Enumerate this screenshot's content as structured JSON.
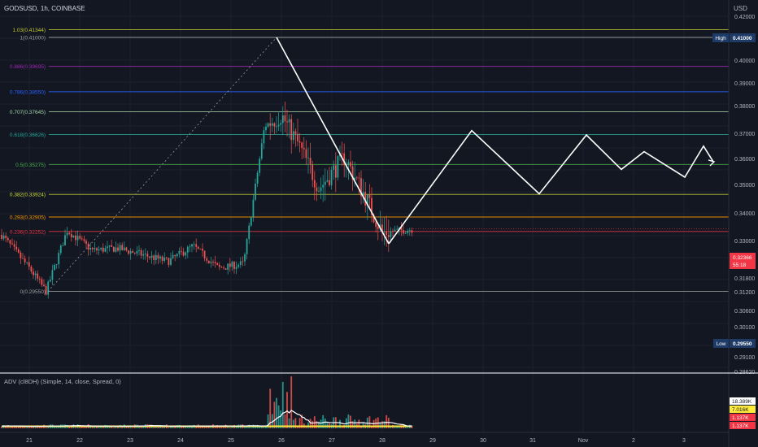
{
  "header": {
    "symbol": "GODSUSD, 1h, COINBASE",
    "currency": "USD"
  },
  "price_axis": {
    "labels": [
      "0.42000",
      "0.41000",
      "0.40000",
      "0.39000",
      "0.38000",
      "0.37000",
      "0.36000",
      "0.35000",
      "0.34000",
      "0.33000",
      "0.31800",
      "0.31200",
      "0.30600",
      "0.30100",
      "0.29550",
      "0.29100",
      "0.28620"
    ]
  },
  "fib": {
    "levels": [
      {
        "label": "1.03(0.41344)",
        "price": 0.41344,
        "color": "#c0ca33"
      },
      {
        "label": "1(0.41000)",
        "price": 0.41,
        "color": "#9e9e9e"
      },
      {
        "label": "0.886(0.39695)",
        "price": 0.39695,
        "color": "#9c27b0"
      },
      {
        "label": "0.786(0.38550)",
        "price": 0.3855,
        "color": "#2962ff"
      },
      {
        "label": "0.707(0.37645)",
        "price": 0.37645,
        "color": "#a5d6a7"
      },
      {
        "label": "0.618(0.36626)",
        "price": 0.36626,
        "color": "#26a69a"
      },
      {
        "label": "0.5(0.35275)",
        "price": 0.35275,
        "color": "#4caf50"
      },
      {
        "label": "0.382(0.33924)",
        "price": 0.33924,
        "color": "#cddc39"
      },
      {
        "label": "0.293(0.32905)",
        "price": 0.32905,
        "color": "#ff9800"
      },
      {
        "label": "0.236(0.32252)",
        "price": 0.32252,
        "color": "#f23645"
      },
      {
        "label": "0(0.29550)",
        "price": 0.2955,
        "color": "#9e9e9e"
      }
    ]
  },
  "tags": {
    "high_label": "High",
    "high_value": "0.41000",
    "low_label": "Low",
    "low_value": "0.29550",
    "last_price": "0.32366",
    "countdown": "55:18"
  },
  "indicator": {
    "title": "ADV (cl8DH) (Simple, 14, close, Spread, 0)",
    "values": [
      "18.389K",
      "7.016K",
      "1.137K",
      "1.137K"
    ]
  },
  "time_axis": {
    "labels": [
      "21",
      "22",
      "23",
      "24",
      "25",
      "26",
      "27",
      "28",
      "29",
      "30",
      "31",
      "Nov",
      "2",
      "3"
    ]
  },
  "chart_data": {
    "type": "candlestick",
    "title": "GODSUSD, 1h, COINBASE",
    "ylim": [
      0.2862,
      0.42
    ],
    "x_labels": [
      "21",
      "22",
      "23",
      "24",
      "25",
      "26",
      "27",
      "28",
      "29",
      "30",
      "31",
      "Nov",
      "2",
      "3"
    ],
    "last_price": 0.32366,
    "price_path": [
      {
        "x": "21",
        "y": 0.321
      },
      {
        "x": "21",
        "y": 0.306
      },
      {
        "x": "21",
        "y": 0.2955
      },
      {
        "x": "22",
        "y": 0.323
      },
      {
        "x": "22",
        "y": 0.314
      },
      {
        "x": "23",
        "y": 0.315
      },
      {
        "x": "23",
        "y": 0.312
      },
      {
        "x": "24",
        "y": 0.309
      },
      {
        "x": "24",
        "y": 0.316
      },
      {
        "x": "25",
        "y": 0.306
      },
      {
        "x": "25",
        "y": 0.308
      },
      {
        "x": "26",
        "y": 0.37
      },
      {
        "x": "26",
        "y": 0.375
      },
      {
        "x": "26",
        "y": 0.362
      },
      {
        "x": "27",
        "y": 0.342
      },
      {
        "x": "27",
        "y": 0.356
      },
      {
        "x": "28",
        "y": 0.338
      },
      {
        "x": "28",
        "y": 0.322
      },
      {
        "x": "28",
        "y": 0.3236
      }
    ],
    "projection_path": [
      {
        "x": "28",
        "y": 0.317
      },
      {
        "x": "30",
        "y": 0.368
      },
      {
        "x": "31",
        "y": 0.3395
      },
      {
        "x": "Nov",
        "y": 0.366
      },
      {
        "x": "2",
        "y": 0.3505
      },
      {
        "x": "2",
        "y": 0.3585
      },
      {
        "x": "3",
        "y": 0.347
      },
      {
        "x": "3",
        "y": 0.361
      }
    ]
  }
}
